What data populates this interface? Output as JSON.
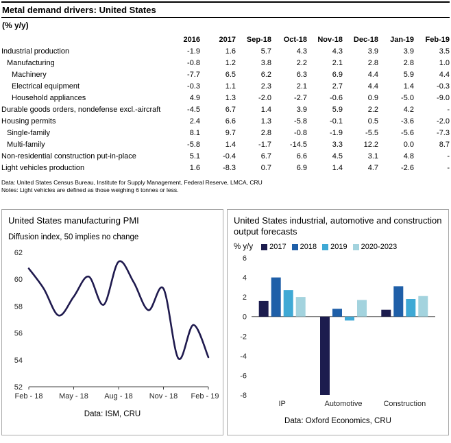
{
  "table": {
    "title": "Metal demand drivers: United States",
    "subtitle": "(% y/y)",
    "columns": [
      "2016",
      "2017",
      "Sep-18",
      "Oct-18",
      "Nov-18",
      "Dec-18",
      "Jan-19",
      "Feb-19"
    ],
    "rows": [
      {
        "label": "Industrial production",
        "indent": 0,
        "values": [
          "-1.9",
          "1.6",
          "5.7",
          "4.3",
          "4.3",
          "3.9",
          "3.9",
          "3.5"
        ]
      },
      {
        "label": "Manufacturing",
        "indent": 1,
        "values": [
          "-0.8",
          "1.2",
          "3.8",
          "2.2",
          "2.1",
          "2.8",
          "2.8",
          "1.0"
        ]
      },
      {
        "label": "Machinery",
        "indent": 2,
        "values": [
          "-7.7",
          "6.5",
          "6.2",
          "6.3",
          "6.9",
          "4.4",
          "5.9",
          "4.4"
        ]
      },
      {
        "label": "Electrical equipment",
        "indent": 2,
        "values": [
          "-0.3",
          "1.1",
          "2.3",
          "2.1",
          "2.7",
          "4.4",
          "1.4",
          "-0.3"
        ]
      },
      {
        "label": "Household appliances",
        "indent": 2,
        "values": [
          "4.9",
          "1.3",
          "-2.0",
          "-2.7",
          "-0.6",
          "0.9",
          "-5.0",
          "-9.0"
        ]
      },
      {
        "label": "Durable goods orders, nondefense excl.-aircraft",
        "indent": 0,
        "values": [
          "-4.5",
          "6.7",
          "1.4",
          "3.9",
          "5.9",
          "2.2",
          "4.2",
          "-"
        ]
      },
      {
        "label": "Housing permits",
        "indent": 0,
        "values": [
          "2.4",
          "6.6",
          "1.3",
          "-5.8",
          "-0.1",
          "0.5",
          "-3.6",
          "-2.0"
        ]
      },
      {
        "label": "Single-family",
        "indent": 1,
        "values": [
          "8.1",
          "9.7",
          "2.8",
          "-0.8",
          "-1.9",
          "-5.5",
          "-5.6",
          "-7.3"
        ]
      },
      {
        "label": "Multi-family",
        "indent": 1,
        "values": [
          "-5.8",
          "1.4",
          "-1.7",
          "-14.5",
          "3.3",
          "12.2",
          "0.0",
          "8.7"
        ]
      },
      {
        "label": "Non-residential construction put-in-place",
        "indent": 0,
        "values": [
          "5.1",
          "-0.4",
          "6.7",
          "6.6",
          "4.5",
          "3.1",
          "4.8",
          "-"
        ]
      },
      {
        "label": "Light vehicles production",
        "indent": 0,
        "values": [
          "1.6",
          "-8.3",
          "0.7",
          "6.9",
          "1.4",
          "4.7",
          "-2.6",
          "-"
        ]
      }
    ],
    "source": "Data: United States Census Bureau, Institute for Supply Management, Federal Reserve, LMCA, CRU",
    "notes": "Notes: Light vehicles are defined as those weighing 6 tonnes or less."
  },
  "chart_data": [
    {
      "type": "line",
      "title": "United States manufacturing PMI",
      "subtitle": "Diffusion index, 50 implies no change",
      "x": [
        "Feb-18",
        "Mar-18",
        "Apr-18",
        "May-18",
        "Jun-18",
        "Jul-18",
        "Aug-18",
        "Sep-18",
        "Oct-18",
        "Nov-18",
        "Dec-18",
        "Jan-19",
        "Feb-19"
      ],
      "values": [
        60.8,
        59.3,
        57.3,
        58.7,
        60.2,
        58.1,
        61.3,
        59.8,
        57.7,
        59.3,
        54.1,
        56.6,
        54.2
      ],
      "xticks": [
        {
          "index": 0,
          "label": "Feb - 18"
        },
        {
          "index": 3,
          "label": "May - 18"
        },
        {
          "index": 6,
          "label": "Aug - 18"
        },
        {
          "index": 9,
          "label": "Nov - 18"
        },
        {
          "index": 12,
          "label": "Feb - 19"
        }
      ],
      "ylim": [
        52,
        62
      ],
      "ytick_step": 2,
      "line_color": "#1f1a4e",
      "source": "Data: ISM, CRU"
    },
    {
      "type": "bar",
      "title": "United States industrial, automotive and construction output forecasts",
      "ylabel": "% y/y",
      "categories": [
        "IP",
        "Automotive",
        "Construction"
      ],
      "series": [
        {
          "name": "2017",
          "color": "#1c1c4e",
          "values": [
            1.6,
            -8.0,
            0.7
          ]
        },
        {
          "name": "2018",
          "color": "#1f5fa8",
          "values": [
            4.0,
            0.8,
            3.1
          ]
        },
        {
          "name": "2019",
          "color": "#3fa9d5",
          "values": [
            2.7,
            -0.4,
            1.8
          ]
        },
        {
          "name": "2020-2023",
          "color": "#a3d3de",
          "values": [
            2.0,
            1.7,
            2.1
          ]
        }
      ],
      "ylim": [
        -8,
        6
      ],
      "ytick_step": 2,
      "source": "Data: Oxford Economics, CRU"
    }
  ]
}
